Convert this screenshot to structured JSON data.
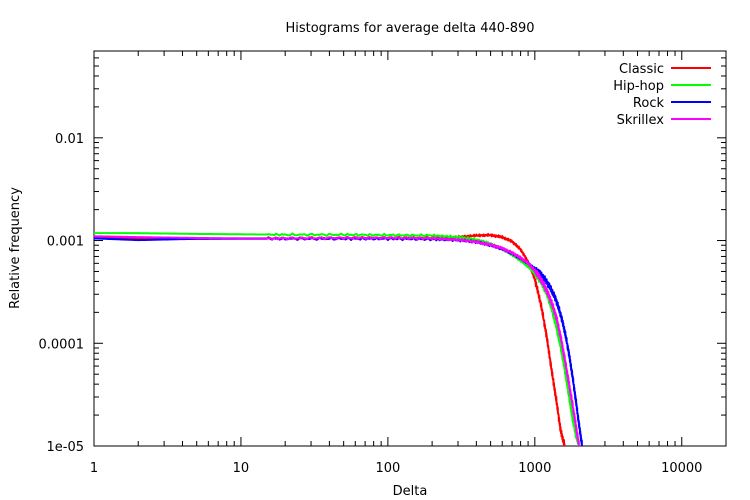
{
  "chart_data": {
    "type": "line",
    "title": "Histograms for average delta 440-890",
    "xlabel": "Delta",
    "ylabel": "Relative frequency",
    "xscale": "log",
    "yscale": "log",
    "xlim": [
      1,
      20000
    ],
    "ylim": [
      1e-05,
      0.07
    ],
    "xticks": [
      {
        "value": 1,
        "label": "1"
      },
      {
        "value": 10,
        "label": "10"
      },
      {
        "value": 100,
        "label": "100"
      },
      {
        "value": 1000,
        "label": "1000"
      },
      {
        "value": 10000,
        "label": "10000"
      }
    ],
    "yticks": [
      {
        "value": 1e-05,
        "label": "1e-05"
      },
      {
        "value": 0.0001,
        "label": "0.0001"
      },
      {
        "value": 0.001,
        "label": "0.001"
      },
      {
        "value": 0.01,
        "label": "0.01"
      }
    ],
    "grid": false,
    "legend_position": "top-right",
    "series": [
      {
        "name": "Classic",
        "color": "#ff0000",
        "x": [
          1,
          2,
          3,
          5,
          10,
          20,
          50,
          100,
          200,
          300,
          400,
          500,
          600,
          700,
          800,
          900,
          1000,
          1100,
          1200,
          1300,
          1400,
          1500,
          1600
        ],
        "y": [
          0.00105,
          0.00105,
          0.00106,
          0.00104,
          0.00105,
          0.00105,
          0.00106,
          0.00106,
          0.00106,
          0.00108,
          0.00112,
          0.00113,
          0.00108,
          0.00098,
          0.00082,
          0.00062,
          0.00042,
          0.00024,
          0.00012,
          5.5e-05,
          2.8e-05,
          1.4e-05,
          1e-05
        ]
      },
      {
        "name": "Hip-hop",
        "color": "#00ff00",
        "x": [
          1,
          2,
          5,
          10,
          20,
          50,
          100,
          200,
          300,
          400,
          500,
          600,
          700,
          800,
          900,
          1000,
          1100,
          1200,
          1300,
          1400,
          1500,
          1600,
          1700,
          1800,
          1900,
          2000
        ],
        "y": [
          0.00118,
          0.00118,
          0.00116,
          0.00115,
          0.00114,
          0.00114,
          0.00113,
          0.00112,
          0.00108,
          0.00102,
          0.00093,
          0.00083,
          0.00073,
          0.00064,
          0.00056,
          0.00048,
          0.0004,
          0.00031,
          0.00022,
          0.000145,
          9.2e-05,
          5.5e-05,
          3.2e-05,
          1.9e-05,
          1.3e-05,
          1e-05
        ]
      },
      {
        "name": "Rock",
        "color": "#0000ff",
        "x": [
          1,
          2,
          5,
          10,
          20,
          50,
          100,
          200,
          300,
          400,
          500,
          600,
          700,
          800,
          900,
          1000,
          1100,
          1200,
          1300,
          1400,
          1500,
          1600,
          1700,
          1800,
          1900,
          2000,
          2100
        ],
        "y": [
          0.00105,
          0.00101,
          0.00104,
          0.00104,
          0.00104,
          0.00104,
          0.00104,
          0.00103,
          0.00101,
          0.00097,
          0.0009,
          0.00083,
          0.00075,
          0.00067,
          0.0006,
          0.00053,
          0.00047,
          0.0004,
          0.00033,
          0.00026,
          0.00019,
          0.00013,
          8.2e-05,
          4.9e-05,
          2.8e-05,
          1.6e-05,
          1e-05
        ]
      },
      {
        "name": "Skrillex",
        "color": "#ff00ff",
        "x": [
          1,
          2,
          5,
          10,
          20,
          50,
          100,
          200,
          300,
          400,
          500,
          600,
          700,
          800,
          900,
          1000,
          1100,
          1200,
          1300,
          1400,
          1500,
          1600,
          1700,
          1800,
          1900,
          2000
        ],
        "y": [
          0.0011,
          0.00108,
          0.00106,
          0.00105,
          0.00105,
          0.00106,
          0.00106,
          0.00105,
          0.00102,
          0.00097,
          0.00091,
          0.00084,
          0.00076,
          0.00068,
          0.0006,
          0.00051,
          0.00042,
          0.00033,
          0.00025,
          0.00018,
          0.000115,
          7e-05,
          4.2e-05,
          2.6e-05,
          1.6e-05,
          1e-05
        ]
      }
    ]
  }
}
